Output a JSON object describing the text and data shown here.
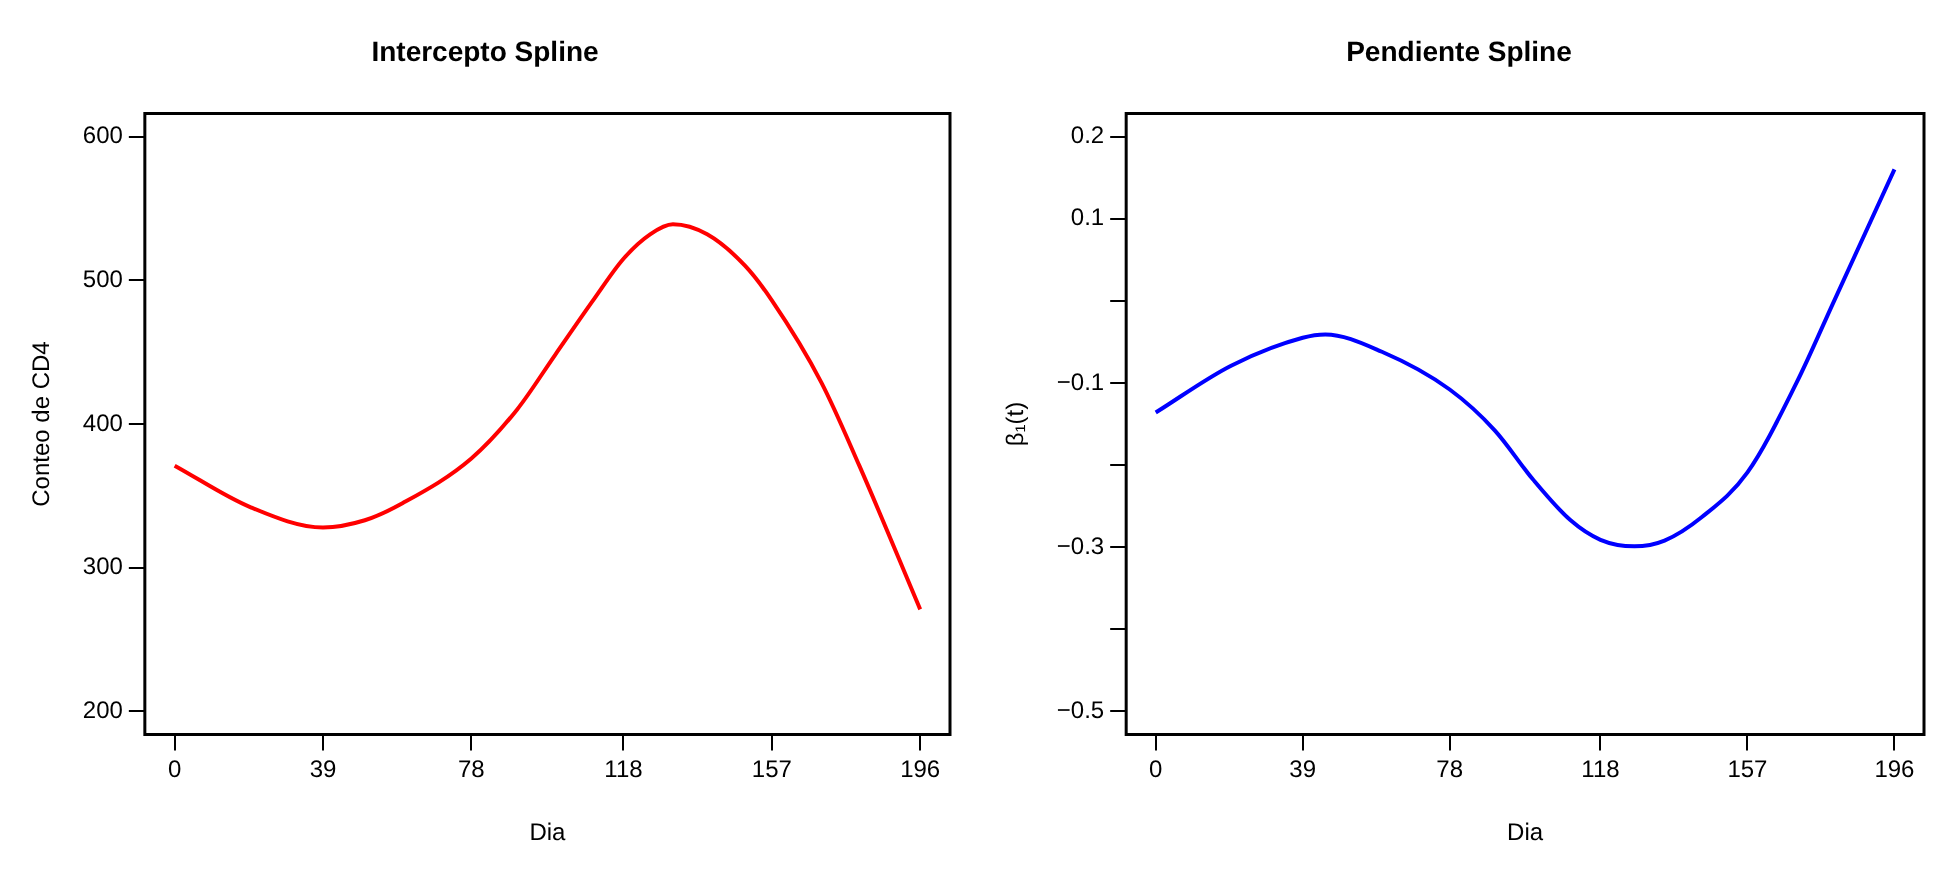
{
  "chart_data": [
    {
      "type": "line",
      "title": "Intercepto Spline",
      "xlabel": "Dia",
      "ylabel": "Conteo de CD4",
      "xlim": [
        -7.84,
        203.84
      ],
      "xticks": [
        0,
        39,
        78,
        118,
        157,
        196
      ],
      "ylim": [
        184,
        616
      ],
      "yticks": [
        200,
        300,
        400,
        500,
        600
      ],
      "series": [
        {
          "color": "#ff0000",
          "x": [
            0,
            20,
            39,
            50,
            60,
            78,
            90,
            100,
            110,
            118,
            125,
            131,
            140,
            150,
            157,
            170,
            180,
            196
          ],
          "values": [
            371,
            342,
            328,
            333,
            345,
            376,
            410,
            448,
            486,
            515,
            532,
            539,
            532,
            510,
            486,
            429,
            371,
            271
          ]
        }
      ]
    },
    {
      "type": "line",
      "title": "Pendiente Spline",
      "xlabel": "Dia",
      "ylabel": "β₁(t)",
      "xlim": [
        -7.84,
        203.84
      ],
      "xticks": [
        0,
        39,
        78,
        118,
        157,
        196
      ],
      "ylim": [
        -0.528,
        0.228
      ],
      "yticks": [
        {
          "value": -0.5,
          "label": "−0.5"
        },
        {
          "value": -0.4,
          "label": null
        },
        {
          "value": -0.3,
          "label": "−0.3"
        },
        {
          "value": -0.2,
          "label": null
        },
        {
          "value": -0.1,
          "label": "−0.1"
        },
        {
          "value": 0,
          "label": null
        },
        0.1,
        0.2
      ],
      "series": [
        {
          "color": "#0000ff",
          "x": [
            0,
            20,
            39,
            45,
            60,
            78,
            90,
            100,
            110,
            118,
            127,
            135,
            145,
            157,
            170,
            180,
            196
          ],
          "values": [
            -0.136,
            -0.079,
            -0.045,
            -0.041,
            -0.062,
            -0.108,
            -0.158,
            -0.217,
            -0.267,
            -0.291,
            -0.299,
            -0.292,
            -0.263,
            -0.209,
            -0.1,
            0.0,
            0.16
          ]
        }
      ]
    }
  ]
}
